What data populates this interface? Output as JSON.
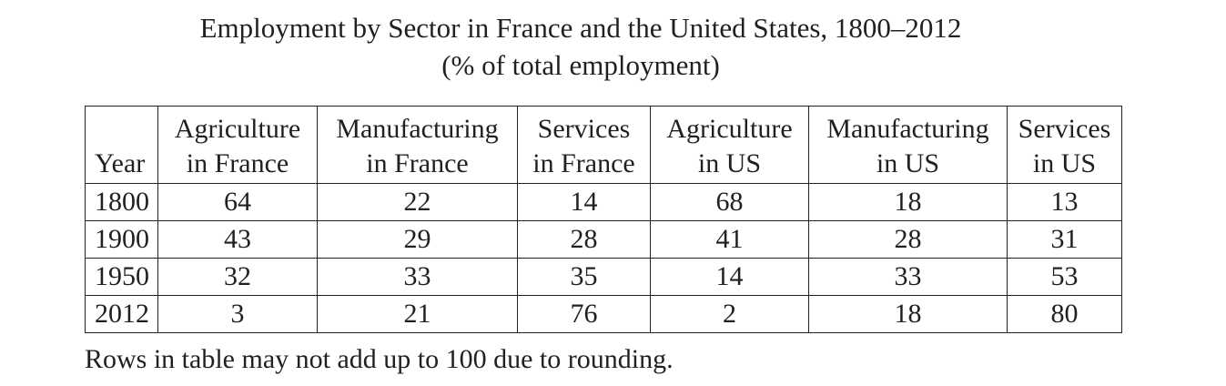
{
  "title": {
    "line1": "Employment by Sector in France and the United States, 1800–2012",
    "line2": "(% of total employment)"
  },
  "table": {
    "columns": [
      {
        "line1": "",
        "line2": "Year"
      },
      {
        "line1": "Agriculture",
        "line2": "in France"
      },
      {
        "line1": "Manufacturing",
        "line2": "in France"
      },
      {
        "line1": "Services",
        "line2": "in France"
      },
      {
        "line1": "Agriculture",
        "line2": "in US"
      },
      {
        "line1": "Manufacturing",
        "line2": "in US"
      },
      {
        "line1": "Services",
        "line2": "in US"
      }
    ],
    "rows": [
      [
        "1800",
        "64",
        "22",
        "14",
        "68",
        "18",
        "13"
      ],
      [
        "1900",
        "43",
        "29",
        "28",
        "41",
        "28",
        "31"
      ],
      [
        "1950",
        "32",
        "33",
        "35",
        "14",
        "33",
        "53"
      ],
      [
        "2012",
        "3",
        "21",
        "76",
        "2",
        "18",
        "80"
      ]
    ]
  },
  "footnote": "Rows in table may not add up to 100 due to rounding."
}
